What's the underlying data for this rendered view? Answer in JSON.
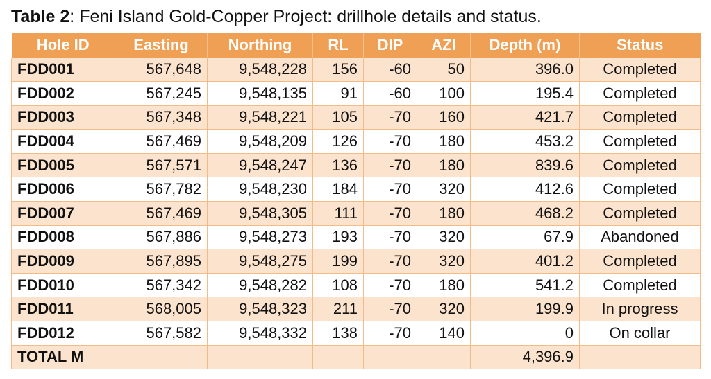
{
  "caption": {
    "label": "Table 2",
    "text": ": Feni Island Gold-Copper Project: drillhole details and status."
  },
  "headers": [
    "Hole ID",
    "Easting",
    "Northing",
    "RL",
    "DIP",
    "AZI",
    "Depth (m)",
    "Status"
  ],
  "rows": [
    {
      "hole": "FDD001",
      "easting": "567,648",
      "northing": "9,548,228",
      "rl": "156",
      "dip": "-60",
      "azi": "50",
      "depth": "396.0",
      "status": "Completed"
    },
    {
      "hole": "FDD002",
      "easting": "567,245",
      "northing": "9,548,135",
      "rl": "91",
      "dip": "-60",
      "azi": "100",
      "depth": "195.4",
      "status": "Completed"
    },
    {
      "hole": "FDD003",
      "easting": "567,348",
      "northing": "9,548,221",
      "rl": "105",
      "dip": "-70",
      "azi": "160",
      "depth": "421.7",
      "status": "Completed"
    },
    {
      "hole": "FDD004",
      "easting": "567,469",
      "northing": "9,548,209",
      "rl": "126",
      "dip": "-70",
      "azi": "180",
      "depth": "453.2",
      "status": "Completed"
    },
    {
      "hole": "FDD005",
      "easting": "567,571",
      "northing": "9,548,247",
      "rl": "136",
      "dip": "-70",
      "azi": "180",
      "depth": "839.6",
      "status": "Completed"
    },
    {
      "hole": "FDD006",
      "easting": "567,782",
      "northing": "9,548,230",
      "rl": "184",
      "dip": "-70",
      "azi": "320",
      "depth": "412.6",
      "status": "Completed"
    },
    {
      "hole": "FDD007",
      "easting": "567,469",
      "northing": "9,548,305",
      "rl": "111",
      "dip": "-70",
      "azi": "180",
      "depth": "468.2",
      "status": "Completed"
    },
    {
      "hole": "FDD008",
      "easting": "567,886",
      "northing": "9,548,273",
      "rl": "193",
      "dip": "-70",
      "azi": "320",
      "depth": "67.9",
      "status": "Abandoned"
    },
    {
      "hole": "FDD009",
      "easting": "567,895",
      "northing": "9,548,275",
      "rl": "199",
      "dip": "-70",
      "azi": "320",
      "depth": "401.2",
      "status": "Completed"
    },
    {
      "hole": "FDD010",
      "easting": "567,342",
      "northing": "9,548,282",
      "rl": "108",
      "dip": "-70",
      "azi": "180",
      "depth": "541.2",
      "status": "Completed"
    },
    {
      "hole": "FDD011",
      "easting": "568,005",
      "northing": "9,548,323",
      "rl": "211",
      "dip": "-70",
      "azi": "320",
      "depth": "199.9",
      "status": "In progress"
    },
    {
      "hole": "FDD012",
      "easting": "567,582",
      "northing": "9,548,332",
      "rl": "138",
      "dip": "-70",
      "azi": "140",
      "depth": "0",
      "status": "On collar"
    }
  ],
  "total": {
    "label": "TOTAL M",
    "depth": "4,396.9"
  },
  "colors": {
    "header_bg": "#f0a055",
    "row_shade": "#fbe3cd",
    "grid": "#f4bb86"
  }
}
